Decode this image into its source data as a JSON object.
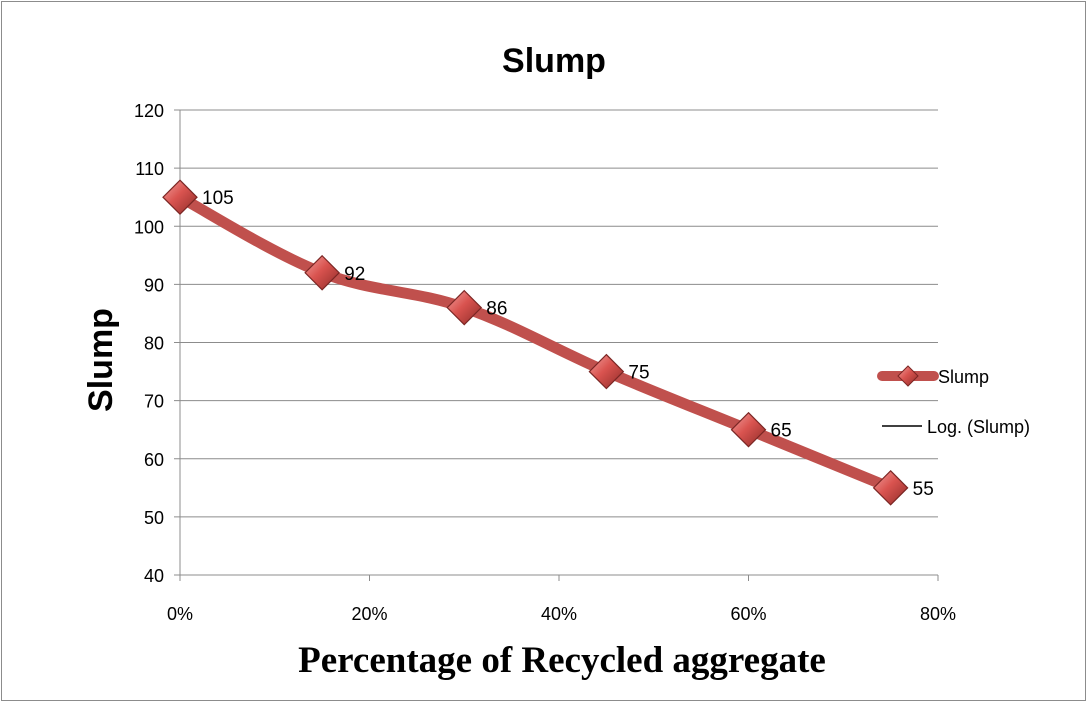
{
  "chart_data": {
    "type": "line",
    "title": "Slump",
    "xlabel": "Percentage of Recycled aggregate",
    "ylabel": "Slump",
    "x": [
      0,
      15,
      30,
      45,
      60,
      75
    ],
    "x_unit": "%",
    "xlim": [
      0,
      80
    ],
    "x_ticks": [
      0,
      20,
      40,
      60,
      80
    ],
    "x_tick_labels": [
      "0%",
      "20%",
      "40%",
      "60%",
      "80%"
    ],
    "ylim": [
      40,
      120
    ],
    "y_ticks": [
      40,
      50,
      60,
      70,
      80,
      90,
      100,
      110,
      120
    ],
    "y_tick_labels": [
      "40",
      "50",
      "60",
      "70",
      "80",
      "90",
      "100",
      "110",
      "120"
    ],
    "grid": true,
    "legend_position": "right",
    "series": [
      {
        "name": "Slump",
        "values": [
          105,
          92,
          86,
          75,
          65,
          55
        ],
        "data_labels": [
          "105",
          "92",
          "86",
          "75",
          "65",
          "55"
        ],
        "color": "#c0504d",
        "marker": "diamond",
        "smooth": true
      }
    ],
    "legend": [
      {
        "label": "Slump",
        "color": "#c0504d",
        "marker": "diamond"
      },
      {
        "label": "Log. (Slump)",
        "color": "#000000",
        "marker": "none"
      }
    ]
  }
}
